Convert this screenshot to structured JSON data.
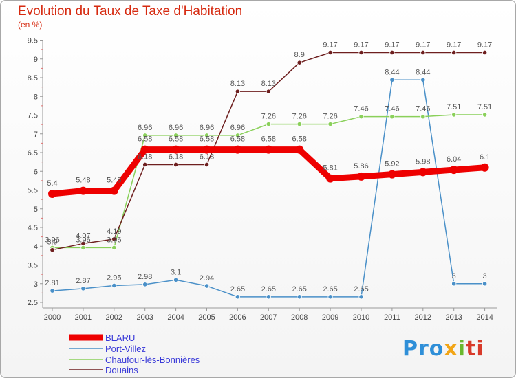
{
  "chart_data": {
    "type": "line",
    "title": "Evolution du Taux de Taxe d'Habitation",
    "subtitle": "(en %)",
    "x": [
      "2000",
      "2001",
      "2002",
      "2003",
      "2004",
      "2005",
      "2006",
      "2007",
      "2008",
      "2009",
      "2010",
      "2011",
      "2012",
      "2013",
      "2014"
    ],
    "ylim": [
      2.5,
      9.5
    ],
    "yticks": [
      "2.5",
      "3",
      "3.5",
      "4",
      "4.5",
      "5",
      "5.5",
      "6",
      "6.5",
      "7",
      "7.5",
      "8",
      "8.5",
      "9",
      "9.5"
    ],
    "grid": false,
    "legend_position": "bottom-left",
    "series": [
      {
        "name": "BLARU",
        "color": "#ee0000",
        "values": [
          5.4,
          5.48,
          5.48,
          6.58,
          6.58,
          6.58,
          6.58,
          6.58,
          6.58,
          5.81,
          5.86,
          5.92,
          5.98,
          6.04,
          6.1
        ],
        "labels": [
          "5.4",
          "5.48",
          "5.48",
          "6.58",
          "6.58",
          "6.58",
          "6.58",
          "6.58",
          "6.58",
          "5.81",
          "5.86",
          "5.92",
          "5.98",
          "6.04",
          "6.1"
        ]
      },
      {
        "name": "Port-Villez",
        "color": "#4a90c8",
        "values": [
          2.81,
          2.87,
          2.95,
          2.98,
          3.1,
          2.94,
          2.65,
          2.65,
          2.65,
          2.65,
          2.65,
          8.44,
          8.44,
          3,
          3
        ],
        "labels": [
          "2.81",
          "2.87",
          "2.95",
          "2.98",
          "3.1",
          "2.94",
          "2.65",
          "2.65",
          "2.65",
          "2.65",
          "2.65",
          "8.44",
          "8.44",
          "3",
          "3"
        ]
      },
      {
        "name": "Chaufour-lès-Bonnières",
        "color": "#8ad05a",
        "values": [
          3.96,
          3.96,
          3.96,
          6.96,
          6.96,
          6.96,
          6.96,
          7.26,
          7.26,
          7.26,
          7.46,
          7.46,
          7.46,
          7.51,
          7.51
        ],
        "labels": [
          "3.96",
          "3.96",
          "3.96",
          "6.96",
          "6.96",
          "6.96",
          "6.96",
          "7.26",
          "7.26",
          "7.26",
          "7.46",
          "7.46",
          "7.46",
          "7.51",
          "7.51"
        ]
      },
      {
        "name": "Douains",
        "color": "#6e1f1f",
        "values": [
          3.9,
          4.07,
          4.19,
          6.18,
          6.18,
          6.18,
          8.13,
          8.13,
          8.9,
          9.17,
          9.17,
          9.17,
          9.17,
          9.17,
          9.17
        ],
        "labels": [
          "3.9",
          "4.07",
          "4.19",
          "6.18",
          "6.18",
          "6.18",
          "8.13",
          "8.13",
          "8.9",
          "9.17",
          "9.17",
          "9.17",
          "9.17",
          "9.17",
          "9.17"
        ]
      }
    ]
  },
  "logo": {
    "p1": "Pro",
    "p2": "x",
    "p3": "i",
    "p4": "ti"
  }
}
